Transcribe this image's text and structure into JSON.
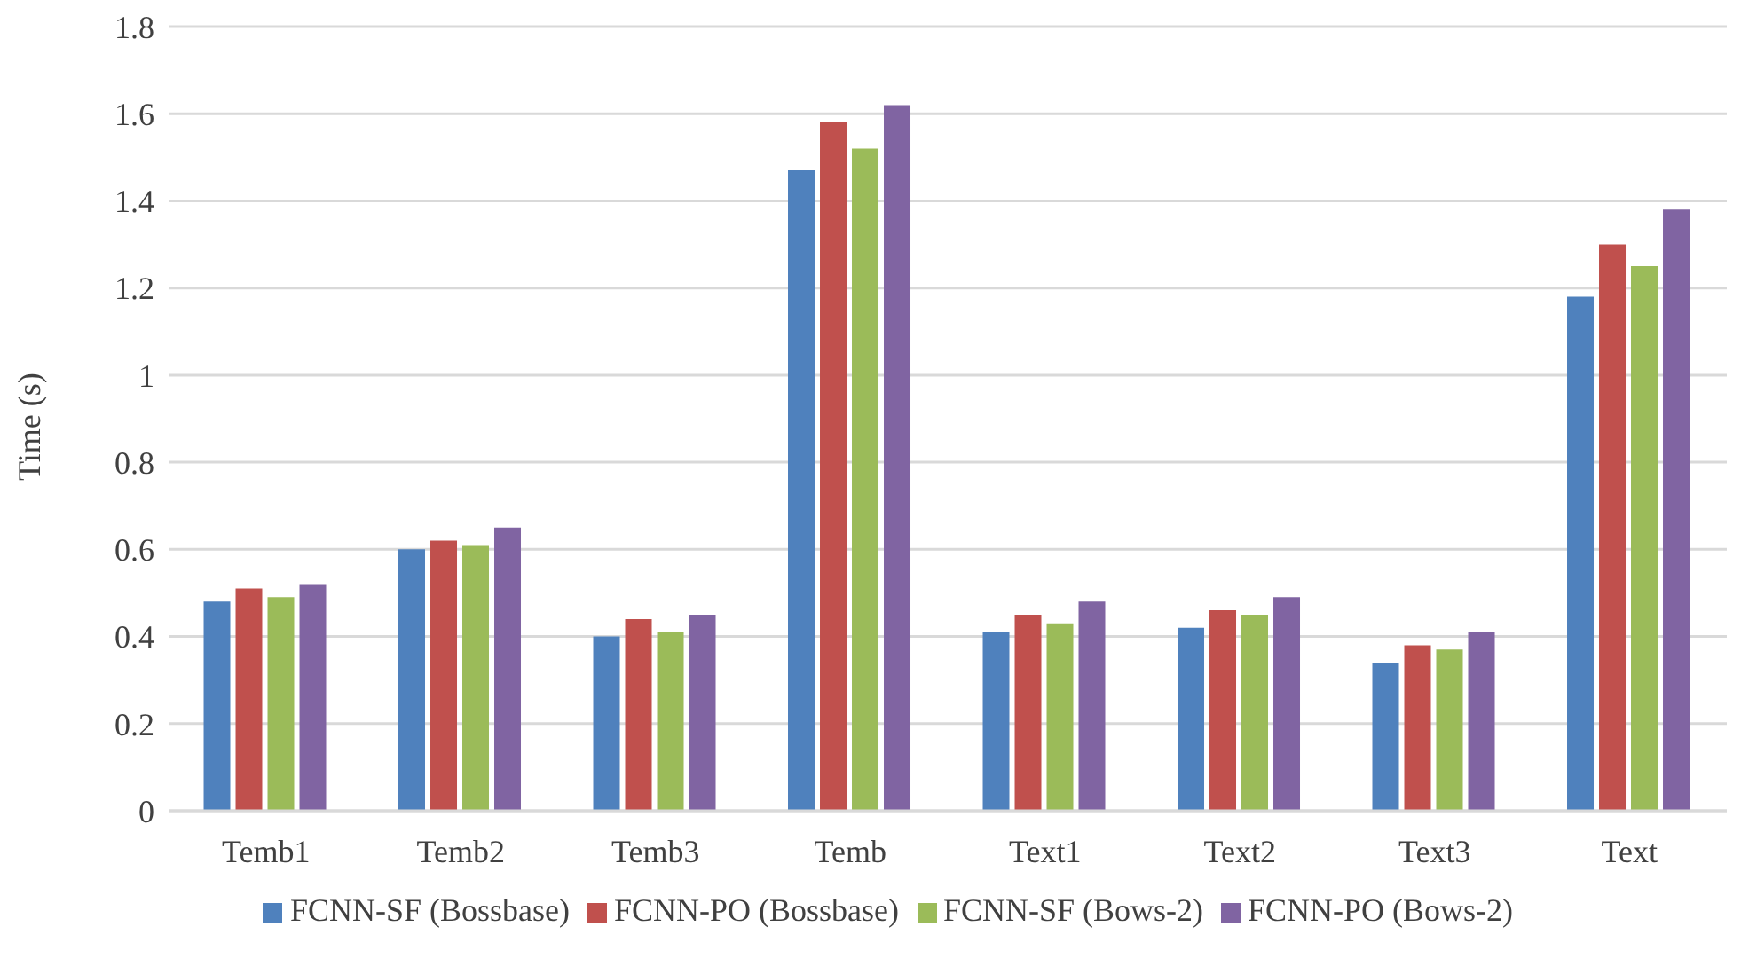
{
  "chart_data": {
    "type": "bar",
    "ylabel": "Time (s)",
    "categories": [
      "Temb1",
      "Temb2",
      "Temb3",
      "Temb",
      "Text1",
      "Text2",
      "Text3",
      "Text"
    ],
    "series": [
      {
        "name": "FCNN-SF (Bossbase)",
        "color": "#4f81bd",
        "values": [
          0.48,
          0.6,
          0.4,
          1.47,
          0.41,
          0.42,
          0.34,
          1.18
        ]
      },
      {
        "name": "FCNN-PO (Bossbase)",
        "color": "#c0504d",
        "values": [
          0.51,
          0.62,
          0.44,
          1.58,
          0.45,
          0.46,
          0.38,
          1.3
        ]
      },
      {
        "name": "FCNN-SF (Bows-2)",
        "color": "#9bbb59",
        "values": [
          0.49,
          0.61,
          0.41,
          1.52,
          0.43,
          0.45,
          0.37,
          1.25
        ]
      },
      {
        "name": "FCNN-PO (Bows-2)",
        "color": "#8064a2",
        "values": [
          0.52,
          0.65,
          0.45,
          1.62,
          0.48,
          0.49,
          0.41,
          1.38
        ]
      }
    ],
    "ylim": [
      0,
      1.8
    ],
    "yticks": [
      0,
      0.2,
      0.4,
      0.6,
      0.8,
      1,
      1.2,
      1.4,
      1.6,
      1.8
    ],
    "grid": "y",
    "legend": "bottom"
  }
}
